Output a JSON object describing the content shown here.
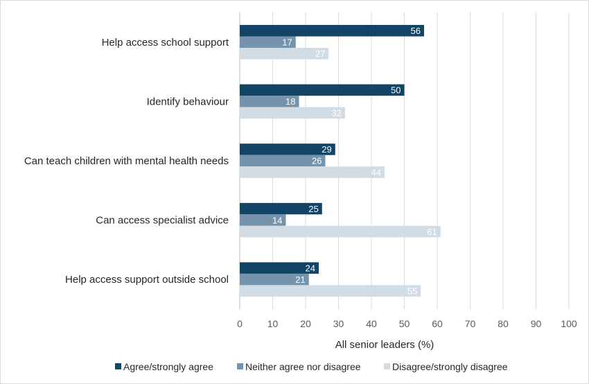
{
  "chart_data": {
    "type": "bar",
    "orientation": "horizontal",
    "categories": [
      "Help access school support",
      "Identify behaviour",
      "Can teach children with mental health needs",
      "Can access specialist advice",
      "Help access support outside school"
    ],
    "series": [
      {
        "name": "Agree/strongly agree",
        "color": "#124466",
        "label_color": "#ffffff",
        "values": [
          56,
          50,
          29,
          25,
          24
        ]
      },
      {
        "name": "Neither agree nor disagree",
        "color": "#7593aa",
        "label_color": "#ffffff",
        "values": [
          17,
          18,
          26,
          14,
          21
        ]
      },
      {
        "name": "Disagree/strongly disagree",
        "color": "#d2dce4",
        "label_color": "#ffffff",
        "values": [
          27,
          32,
          44,
          61,
          55
        ]
      }
    ],
    "xlabel": "All senior leaders (%)",
    "xlim": [
      0,
      100
    ],
    "xticks": [
      0,
      10,
      20,
      30,
      40,
      50,
      60,
      70,
      80,
      90,
      100
    ],
    "grid": "vertical",
    "legend": "bottom"
  }
}
